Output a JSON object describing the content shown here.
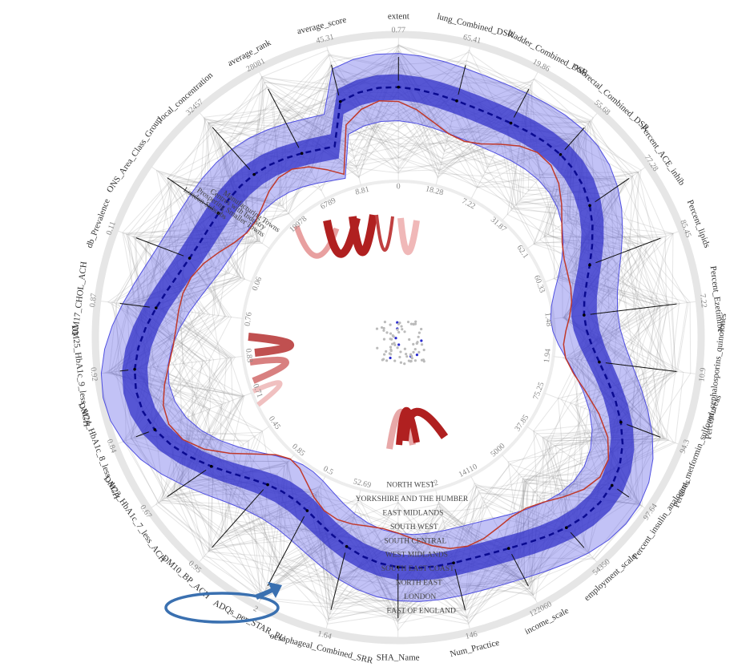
{
  "axes": [
    {
      "name": "average_score",
      "max": "45.31",
      "min": "8.81"
    },
    {
      "name": "extent",
      "max": "0.77",
      "min": "0"
    },
    {
      "name": "lung_Combined_DSR",
      "max": "65.41",
      "min": "18.28"
    },
    {
      "name": "bladder_Combined_DSR",
      "max": "19.86",
      "min": "7.22"
    },
    {
      "name": "colorectal_Combined_DSR",
      "max": "55.68",
      "min": "31.87"
    },
    {
      "name": "Percent_ACE_inhib",
      "max": "77.28",
      "min": "62.1"
    },
    {
      "name": "Percent_lipids",
      "max": "85.45",
      "min": "60.33"
    },
    {
      "name": "Percent_Ezetimibe",
      "max": "7.22",
      "min": "1.48"
    },
    {
      "name": "Percent_cephalosporins_quinolones",
      "max": "10.9",
      "min": "1.94"
    },
    {
      "name": "Percent_metformin_sulfonylureas",
      "max": "94.3",
      "min": "75.25"
    },
    {
      "name": "Percent_insulin_analogues",
      "max": "97.64",
      "min": "37.85"
    },
    {
      "name": "employment_scale",
      "max": "54350",
      "min": "5000"
    },
    {
      "name": "income_scale",
      "max": "122060",
      "min": "14110"
    },
    {
      "name": "Num_Practice",
      "max": "146",
      "min": "12"
    },
    {
      "name": "SHA_Name"
    },
    {
      "name": "oesophageal_Combined_SRR",
      "max": "1.64",
      "min": "52.69"
    },
    {
      "name": "ADQs_per_STAR_PU",
      "max": "2",
      "min": "0.5"
    },
    {
      "name": "DM10_BP_ACH",
      "max": "0.95",
      "min": "0.85"
    },
    {
      "name": "DM23_HbA1c_7_less_ACH",
      "max": "0.67",
      "min": "0.45"
    },
    {
      "name": "DM24_HbA1c_8_less_ACH",
      "max": "0.84",
      "min": "0.71"
    },
    {
      "name": "DM25_HbA1c_9_less_ACH",
      "max": "0.92",
      "min": "0.83"
    },
    {
      "name": "DM17_CHOL_ACH",
      "max": "0.87",
      "min": "0.76"
    },
    {
      "name": "db_Prevalence",
      "max": "0.11",
      "min": "0.06"
    },
    {
      "name": "ONS_Area_Class_Group"
    },
    {
      "name": "local_concentration",
      "max": "32457",
      "min": "19978"
    },
    {
      "name": "average_rank",
      "max": "28081",
      "min": "6789"
    }
  ],
  "ons_area_classes": [
    "London Suburbs",
    "Prospering Smaller Towns",
    "Centres with Industry",
    "Manufacturing Towns"
  ],
  "sha_regions": [
    "NORTH WEST",
    "YORKSHIRE AND THE HUMBER",
    "EAST MIDLANDS",
    "SOUTH WEST",
    "SOUTH CENTRAL",
    "WEST MIDLANDS",
    "SOUTH EAST COAST",
    "NORTH EAST",
    "LONDON",
    "EAST OF ENGLAND"
  ]
}
